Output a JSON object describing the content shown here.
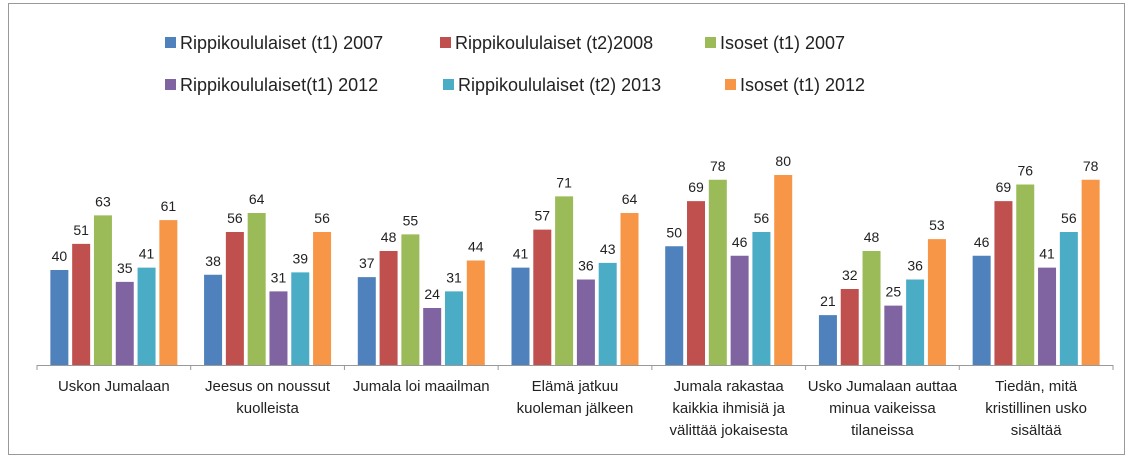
{
  "chart_data": {
    "type": "bar",
    "categories": [
      "Uskon Jumalaan",
      "Jeesus on noussut kuolleista",
      "Jumala loi maailman",
      "Elämä jatkuu kuoleman jälkeen",
      "Jumala rakastaa kaikkia ihmisiä ja välittää jokaisesta",
      "Usko Jumalaan auttaa minua vaikeissa tilaneissa",
      "Tiedän, mitä kristillinen usko sisältää"
    ],
    "series": [
      {
        "name": "Rippikoululaiset (t1) 2007",
        "color": "#4f81bd",
        "values": [
          40,
          38,
          37,
          41,
          50,
          21,
          46
        ]
      },
      {
        "name": "Rippikoululaiset (t2)2008",
        "color": "#c0504d",
        "values": [
          51,
          56,
          48,
          57,
          69,
          32,
          69
        ]
      },
      {
        "name": "Isoset (t1) 2007",
        "color": "#9bbb59",
        "values": [
          63,
          64,
          55,
          71,
          78,
          48,
          76
        ]
      },
      {
        "name": "Rippikoululaiset(t1) 2012",
        "color": "#8064a2",
        "values": [
          35,
          31,
          24,
          36,
          46,
          25,
          41
        ]
      },
      {
        "name": "Rippikoululaiset (t2) 2013",
        "color": "#4bacc6",
        "values": [
          41,
          39,
          31,
          43,
          56,
          36,
          56
        ]
      },
      {
        "name": "Isoset (t1) 2012",
        "color": "#f79646",
        "values": [
          61,
          56,
          44,
          64,
          80,
          53,
          78
        ]
      }
    ]
  }
}
